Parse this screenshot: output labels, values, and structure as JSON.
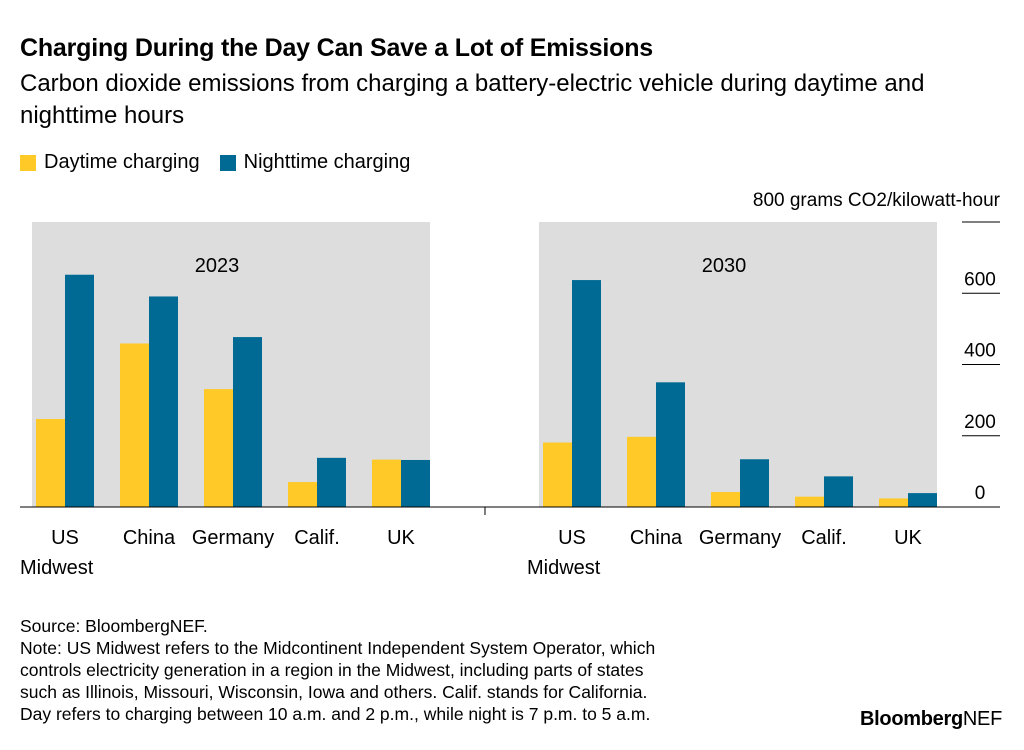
{
  "header": {
    "title": "Charging During the Day Can Save a Lot of Emissions",
    "subtitle": "Carbon dioxide emissions from charging a battery-electric vehicle during daytime and nighttime hours"
  },
  "colors": {
    "daytime": "#ffc927",
    "nighttime": "#006a94",
    "panel_bg": "#dddddd"
  },
  "chart_data": {
    "type": "bar",
    "unit_label": "800 grams CO2/kilowatt-hour",
    "ylim": [
      0,
      800
    ],
    "y_ticks": [
      0,
      200,
      400,
      600
    ],
    "y_tick_labels": [
      "0",
      "200",
      "400",
      "600"
    ],
    "grid": false,
    "legend_position": "top-left",
    "categories": [
      "US Midwest",
      "China",
      "Germany",
      "Calif.",
      "UK"
    ],
    "category_labels": [
      [
        "US",
        "Midwest"
      ],
      [
        "China"
      ],
      [
        "Germany"
      ],
      [
        "Calif."
      ],
      [
        "UK"
      ]
    ],
    "panels": [
      {
        "label": "2023",
        "series": [
          {
            "name": "Daytime charging",
            "values": [
              247,
              459,
              331,
              70,
              133
            ]
          },
          {
            "name": "Nighttime charging",
            "values": [
              652,
              591,
              477,
              138,
              132
            ]
          }
        ]
      },
      {
        "label": "2030",
        "series": [
          {
            "name": "Daytime charging",
            "values": [
              181,
              197,
              42,
              29,
              24
            ]
          },
          {
            "name": "Nighttime charging",
            "values": [
              637,
              350,
              134,
              86,
              39
            ]
          }
        ]
      }
    ]
  },
  "footer": {
    "source": "Source: BloombergNEF.",
    "note_lines": [
      "Note: US Midwest refers to the Midcontinent Independent System Operator, which",
      "controls electricity generation in a region in the Midwest, including parts of states",
      "such as Illinois, Missouri, Wisconsin, Iowa and others. Calif. stands for California.",
      "Day refers to charging between 10 a.m. and 2 p.m., while night is 7 p.m. to 5 a.m."
    ],
    "brand_bold": "Bloomberg",
    "brand_light": "NEF"
  }
}
